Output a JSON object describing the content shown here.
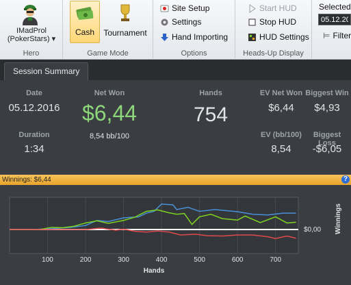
{
  "ribbon": {
    "hero": {
      "name_line1": "IMadProl",
      "name_line2": "(PokerStars)",
      "dropdown": "▾",
      "group_label": "Hero"
    },
    "game_mode": {
      "cash_label": "Cash",
      "tournament_label": "Tournament",
      "group_label": "Game Mode"
    },
    "options": {
      "site_setup": "Site Setup",
      "settings": "Settings",
      "hand_importing": "Hand Importing",
      "group_label": "Options"
    },
    "hud": {
      "start_hud": "Start HUD",
      "stop_hud": "Stop HUD",
      "hud_settings": "HUD Settings",
      "group_label": "Heads-Up Display"
    },
    "selected": {
      "label": "Selected",
      "date_value": "05.12.20",
      "filter_label": "Filter"
    }
  },
  "tabs": [
    {
      "label": "Session Summary"
    }
  ],
  "summary": {
    "date_label": "Date",
    "date_value": "05.12.2016",
    "duration_label": "Duration",
    "duration_value": "1:34",
    "net_won_label": "Net Won",
    "net_won_value": "$6,44",
    "net_won_bb": "8,54 bb/100",
    "hands_label": "Hands",
    "hands_value": "754",
    "ev_net_won_label": "EV Net Won",
    "ev_net_won_value": "$6,44",
    "biggest_win_label": "Biggest Win",
    "biggest_win_value": "$4,93",
    "ev_bb_label": "EV (bb/100)",
    "ev_bb_value": "8,54",
    "biggest_loss_label": "Biggest Loss",
    "biggest_loss_value": "-$6,05"
  },
  "winnings_bar": {
    "label": "Winnings: $6,44",
    "help": "?"
  },
  "chart_data": {
    "type": "line",
    "xlabel": "Hands",
    "ylabel": "Winnings",
    "x_ticks": [
      100,
      200,
      300,
      400,
      500,
      600,
      700
    ],
    "xlim": [
      0,
      760
    ],
    "y_tick_label": "$0,00",
    "series": [
      {
        "color": "#4a90d9",
        "points": [
          [
            0,
            0
          ],
          [
            60,
            0
          ],
          [
            120,
            0.3
          ],
          [
            160,
            0.6
          ],
          [
            200,
            1.1
          ],
          [
            230,
            2.5
          ],
          [
            260,
            2.2
          ],
          [
            300,
            3.2
          ],
          [
            340,
            3.5
          ],
          [
            360,
            4.5
          ],
          [
            380,
            5.0
          ],
          [
            400,
            7.0
          ],
          [
            430,
            6.8
          ],
          [
            440,
            5.5
          ],
          [
            470,
            6.1
          ],
          [
            500,
            5.0
          ],
          [
            540,
            5.5
          ],
          [
            600,
            4.9
          ],
          [
            640,
            4.2
          ],
          [
            680,
            4.0
          ],
          [
            720,
            4.5
          ],
          [
            754,
            4.5
          ]
        ]
      },
      {
        "color": "#7ed321",
        "points": [
          [
            0,
            0
          ],
          [
            40,
            0
          ],
          [
            80,
            0
          ],
          [
            110,
            0.6
          ],
          [
            140,
            0.5
          ],
          [
            170,
            0.9
          ],
          [
            200,
            1.8
          ],
          [
            230,
            2.4
          ],
          [
            260,
            1.7
          ],
          [
            300,
            2.5
          ],
          [
            330,
            3.4
          ],
          [
            360,
            5.0
          ],
          [
            390,
            5.4
          ],
          [
            420,
            4.6
          ],
          [
            440,
            4.2
          ],
          [
            460,
            4.4
          ],
          [
            480,
            1.4
          ],
          [
            500,
            3.5
          ],
          [
            530,
            4.2
          ],
          [
            560,
            3.0
          ],
          [
            600,
            2.6
          ],
          [
            620,
            3.7
          ],
          [
            660,
            1.9
          ],
          [
            700,
            3.5
          ],
          [
            730,
            1.8
          ],
          [
            754,
            2.0
          ]
        ]
      },
      {
        "color": "#e04a4a",
        "points": [
          [
            0,
            0
          ],
          [
            200,
            0
          ],
          [
            240,
            0.4
          ],
          [
            280,
            -0.2
          ],
          [
            300,
            0.1
          ],
          [
            330,
            -0.5
          ],
          [
            360,
            -0.7
          ],
          [
            390,
            -0.4
          ],
          [
            420,
            -0.7
          ],
          [
            450,
            -1.5
          ],
          [
            490,
            -1.3
          ],
          [
            520,
            -1.7
          ],
          [
            560,
            -1.8
          ],
          [
            600,
            -1.5
          ],
          [
            640,
            -1.5
          ],
          [
            680,
            -2.0
          ],
          [
            700,
            -2.5
          ],
          [
            730,
            -1.8
          ],
          [
            754,
            -2.4
          ]
        ]
      }
    ]
  }
}
